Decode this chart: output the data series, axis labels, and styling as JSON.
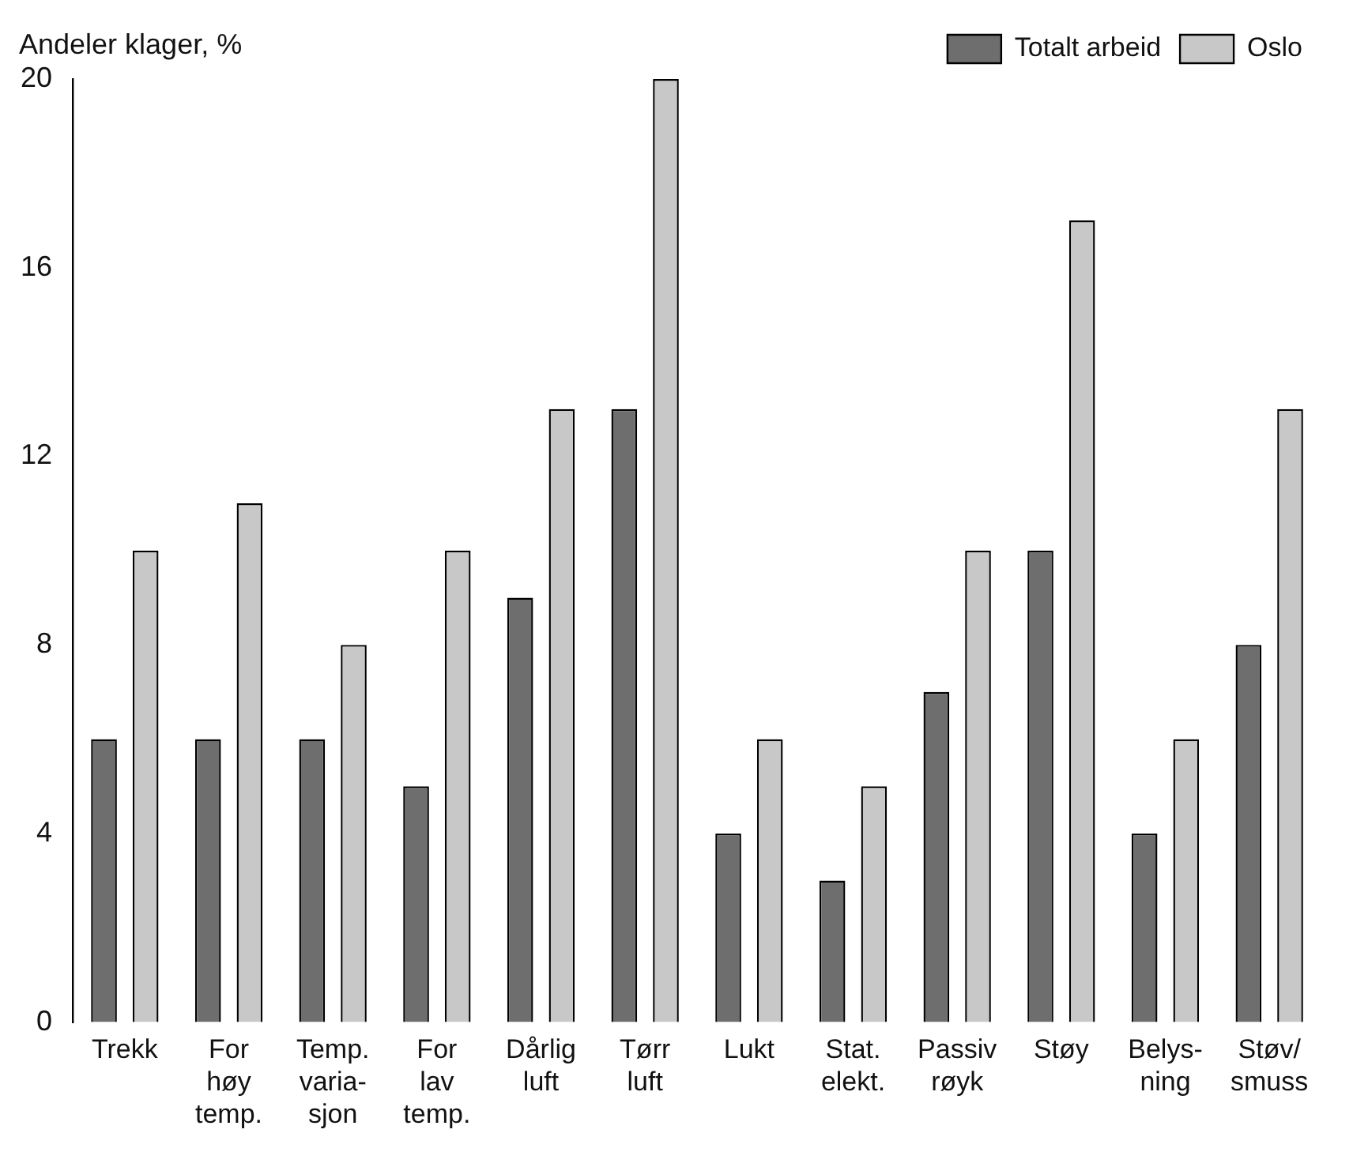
{
  "chart_data": {
    "type": "bar",
    "ylabel": "Andeler klager, %",
    "categories": [
      "Trekk",
      "For\nhøy\ntemp.",
      "Temp.\nvaria-\nsjon",
      "For\nlav\ntemp.",
      "Dårlig\nluft",
      "Tørr\nluft",
      "Lukt",
      "Stat.\nelekt.",
      "Passiv\nrøyk",
      "Støy",
      "Belys-\nning",
      "Støv/\nsmuss"
    ],
    "series": [
      {
        "name": "Totalt arbeid",
        "color": "#6e6e6e",
        "values": [
          6,
          6,
          6,
          5,
          9,
          13,
          4,
          3,
          7,
          10,
          4,
          8
        ]
      },
      {
        "name": "Oslo",
        "color": "#c8c8c8",
        "values": [
          10,
          11,
          8,
          10,
          13,
          20,
          6,
          5,
          10,
          17,
          6,
          13
        ]
      }
    ],
    "ylim": [
      0,
      20
    ],
    "yticks": [
      0,
      4,
      8,
      12,
      16,
      20
    ],
    "grid": false,
    "legend": "top right"
  }
}
